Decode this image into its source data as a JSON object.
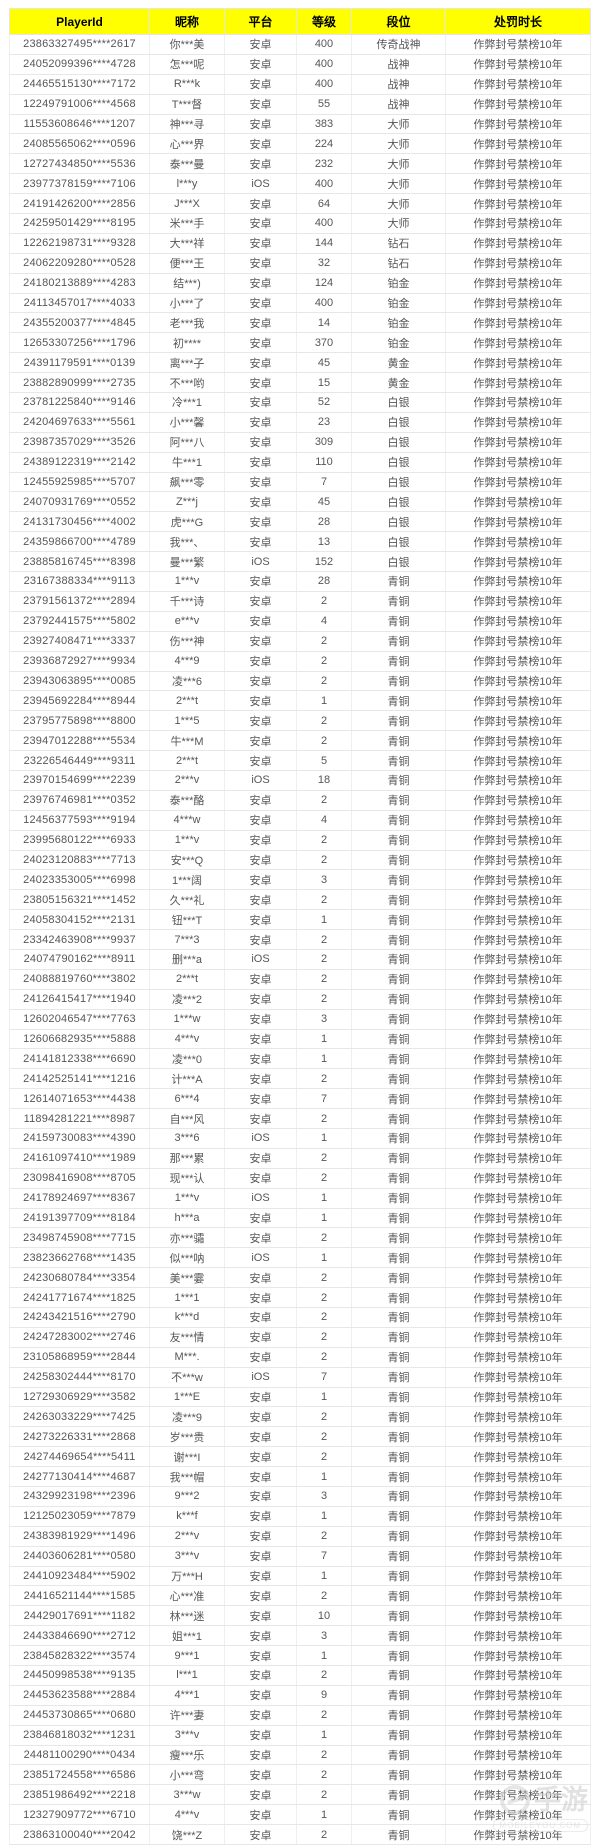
{
  "table": {
    "columns": [
      {
        "key": "playerId",
        "label": "PlayerId"
      },
      {
        "key": "nickname",
        "label": "昵称"
      },
      {
        "key": "platform",
        "label": "平台"
      },
      {
        "key": "level",
        "label": "等级"
      },
      {
        "key": "rank",
        "label": "段位"
      },
      {
        "key": "punishment",
        "label": "处罚时长"
      }
    ],
    "rows": [
      [
        "23863327495****2617",
        "你***美",
        "安卓",
        "400",
        "传奇战神",
        "作弊封号禁榜10年"
      ],
      [
        "24052099396****4728",
        "怎***呢",
        "安卓",
        "400",
        "战神",
        "作弊封号禁榜10年"
      ],
      [
        "24465515130****7172",
        "R***k",
        "安卓",
        "400",
        "战神",
        "作弊封号禁榜10年"
      ],
      [
        "12249791006****4568",
        "T***督",
        "安卓",
        "55",
        "战神",
        "作弊封号禁榜10年"
      ],
      [
        "11553608646****1207",
        "神***寻",
        "安卓",
        "383",
        "大师",
        "作弊封号禁榜10年"
      ],
      [
        "24085565062****0596",
        "心***界",
        "安卓",
        "224",
        "大师",
        "作弊封号禁榜10年"
      ],
      [
        "12727434850****5536",
        "泰***曼",
        "安卓",
        "232",
        "大师",
        "作弊封号禁榜10年"
      ],
      [
        "23977378159****7106",
        "l***y",
        "iOS",
        "400",
        "大师",
        "作弊封号禁榜10年"
      ],
      [
        "24191426200****2856",
        "J***X",
        "安卓",
        "64",
        "大师",
        "作弊封号禁榜10年"
      ],
      [
        "24259501429****8195",
        "米***手",
        "安卓",
        "400",
        "大师",
        "作弊封号禁榜10年"
      ],
      [
        "12262198731****9328",
        "大***祥",
        "安卓",
        "144",
        "钻石",
        "作弊封号禁榜10年"
      ],
      [
        "24062209280****0528",
        "便***王",
        "安卓",
        "32",
        "钻石",
        "作弊封号禁榜10年"
      ],
      [
        "24180213889****4283",
        "结***)",
        "安卓",
        "124",
        "铂金",
        "作弊封号禁榜10年"
      ],
      [
        "24113457017****4033",
        "小***了",
        "安卓",
        "400",
        "铂金",
        "作弊封号禁榜10年"
      ],
      [
        "24355200377****4845",
        "老***我",
        "安卓",
        "14",
        "铂金",
        "作弊封号禁榜10年"
      ],
      [
        "12653307256****1796",
        "初****",
        "安卓",
        "370",
        "铂金",
        "作弊封号禁榜10年"
      ],
      [
        "24391179591****0139",
        "离***子",
        "安卓",
        "45",
        "黄金",
        "作弊封号禁榜10年"
      ],
      [
        "23882890999****2735",
        "不***哟",
        "安卓",
        "15",
        "黄金",
        "作弊封号禁榜10年"
      ],
      [
        "23781225840****9146",
        "冷***1",
        "安卓",
        "52",
        "白银",
        "作弊封号禁榜10年"
      ],
      [
        "24204697633****5561",
        "小***馨",
        "安卓",
        "23",
        "白银",
        "作弊封号禁榜10年"
      ],
      [
        "23987357029****3526",
        "阿***八",
        "安卓",
        "309",
        "白银",
        "作弊封号禁榜10年"
      ],
      [
        "24389122319****2142",
        "牛***1",
        "安卓",
        "110",
        "白银",
        "作弊封号禁榜10年"
      ],
      [
        "12455925985****5707",
        "飙***零",
        "安卓",
        "7",
        "白银",
        "作弊封号禁榜10年"
      ],
      [
        "24070931769****0552",
        "Z***j",
        "安卓",
        "45",
        "白银",
        "作弊封号禁榜10年"
      ],
      [
        "24131730456****4002",
        "虎***G",
        "安卓",
        "28",
        "白银",
        "作弊封号禁榜10年"
      ],
      [
        "24359866700****4789",
        "我***、",
        "安卓",
        "13",
        "白银",
        "作弊封号禁榜10年"
      ],
      [
        "23885816745****8398",
        "曼***繁",
        "iOS",
        "152",
        "白银",
        "作弊封号禁榜10年"
      ],
      [
        "23167388334****9113",
        "1***v",
        "安卓",
        "28",
        "青铜",
        "作弊封号禁榜10年"
      ],
      [
        "23791561372****2894",
        "千***诗",
        "安卓",
        "2",
        "青铜",
        "作弊封号禁榜10年"
      ],
      [
        "23792441575****5802",
        "e***v",
        "安卓",
        "4",
        "青铜",
        "作弊封号禁榜10年"
      ],
      [
        "23927408471****3337",
        "伤***神",
        "安卓",
        "2",
        "青铜",
        "作弊封号禁榜10年"
      ],
      [
        "23936872927****9934",
        "4***9",
        "安卓",
        "2",
        "青铜",
        "作弊封号禁榜10年"
      ],
      [
        "23943063895****0085",
        "凌***6",
        "安卓",
        "2",
        "青铜",
        "作弊封号禁榜10年"
      ],
      [
        "23945692284****8944",
        "2***t",
        "安卓",
        "1",
        "青铜",
        "作弊封号禁榜10年"
      ],
      [
        "23795775898****8800",
        "1***5",
        "安卓",
        "2",
        "青铜",
        "作弊封号禁榜10年"
      ],
      [
        "23947012288****5534",
        "牛***M",
        "安卓",
        "2",
        "青铜",
        "作弊封号禁榜10年"
      ],
      [
        "23226546449****9311",
        "2***t",
        "安卓",
        "5",
        "青铜",
        "作弊封号禁榜10年"
      ],
      [
        "23970154699****2239",
        "2***v",
        "iOS",
        "18",
        "青铜",
        "作弊封号禁榜10年"
      ],
      [
        "23976746981****0352",
        "泰***酪",
        "安卓",
        "2",
        "青铜",
        "作弊封号禁榜10年"
      ],
      [
        "12456377593****9194",
        "4***w",
        "安卓",
        "4",
        "青铜",
        "作弊封号禁榜10年"
      ],
      [
        "23995680122****6933",
        "1***v",
        "安卓",
        "2",
        "青铜",
        "作弊封号禁榜10年"
      ],
      [
        "24023120883****7713",
        "安***Q",
        "安卓",
        "2",
        "青铜",
        "作弊封号禁榜10年"
      ],
      [
        "24023353005****6998",
        "1***阔",
        "安卓",
        "3",
        "青铜",
        "作弊封号禁榜10年"
      ],
      [
        "23805156321****1452",
        "久***礼",
        "安卓",
        "2",
        "青铜",
        "作弊封号禁榜10年"
      ],
      [
        "24058304152****2131",
        "钮***T",
        "安卓",
        "1",
        "青铜",
        "作弊封号禁榜10年"
      ],
      [
        "23342463908****9937",
        "7***3",
        "安卓",
        "2",
        "青铜",
        "作弊封号禁榜10年"
      ],
      [
        "24074790162****8911",
        "删***a",
        "iOS",
        "2",
        "青铜",
        "作弊封号禁榜10年"
      ],
      [
        "24088819760****3802",
        "2***t",
        "安卓",
        "2",
        "青铜",
        "作弊封号禁榜10年"
      ],
      [
        "24126415417****1940",
        "凌***2",
        "安卓",
        "2",
        "青铜",
        "作弊封号禁榜10年"
      ],
      [
        "12602046547****7763",
        "1***w",
        "安卓",
        "3",
        "青铜",
        "作弊封号禁榜10年"
      ],
      [
        "12606682935****5888",
        "4***v",
        "安卓",
        "1",
        "青铜",
        "作弊封号禁榜10年"
      ],
      [
        "24141812338****6690",
        "凌***0",
        "安卓",
        "1",
        "青铜",
        "作弊封号禁榜10年"
      ],
      [
        "24142525141****1216",
        "计***A",
        "安卓",
        "2",
        "青铜",
        "作弊封号禁榜10年"
      ],
      [
        "12614071653****4438",
        "6***4",
        "安卓",
        "7",
        "青铜",
        "作弊封号禁榜10年"
      ],
      [
        "11894281221****8987",
        "自***风",
        "安卓",
        "2",
        "青铜",
        "作弊封号禁榜10年"
      ],
      [
        "24159730083****4390",
        "3***6",
        "iOS",
        "1",
        "青铜",
        "作弊封号禁榜10年"
      ],
      [
        "24161097410****1989",
        "那***累",
        "安卓",
        "2",
        "青铜",
        "作弊封号禁榜10年"
      ],
      [
        "23098416908****8705",
        "现***认",
        "安卓",
        "2",
        "青铜",
        "作弊封号禁榜10年"
      ],
      [
        "24178924697****8367",
        "1***v",
        "iOS",
        "1",
        "青铜",
        "作弊封号禁榜10年"
      ],
      [
        "24191397709****8184",
        "h***a",
        "安卓",
        "1",
        "青铜",
        "作弊封号禁榜10年"
      ],
      [
        "23498745908****7715",
        "亦***骦",
        "安卓",
        "2",
        "青铜",
        "作弊封号禁榜10年"
      ],
      [
        "23823662768****1435",
        "似***呐",
        "iOS",
        "1",
        "青铜",
        "作弊封号禁榜10年"
      ],
      [
        "24230680784****3354",
        "美***霎",
        "安卓",
        "2",
        "青铜",
        "作弊封号禁榜10年"
      ],
      [
        "24241771674****1825",
        "1***1",
        "安卓",
        "2",
        "青铜",
        "作弊封号禁榜10年"
      ],
      [
        "24243421516****2790",
        "k***d",
        "安卓",
        "2",
        "青铜",
        "作弊封号禁榜10年"
      ],
      [
        "24247283002****2746",
        "友***情",
        "安卓",
        "2",
        "青铜",
        "作弊封号禁榜10年"
      ],
      [
        "23105868959****2844",
        "M***.",
        "安卓",
        "2",
        "青铜",
        "作弊封号禁榜10年"
      ],
      [
        "24258302444****8170",
        "不***w",
        "iOS",
        "7",
        "青铜",
        "作弊封号禁榜10年"
      ],
      [
        "12729306929****3582",
        "1***E",
        "安卓",
        "1",
        "青铜",
        "作弊封号禁榜10年"
      ],
      [
        "24263033229****7425",
        "凌***9",
        "安卓",
        "2",
        "青铜",
        "作弊封号禁榜10年"
      ],
      [
        "24273226331****2868",
        "岁***贵",
        "安卓",
        "2",
        "青铜",
        "作弊封号禁榜10年"
      ],
      [
        "24274469654****5411",
        "谢***I",
        "安卓",
        "2",
        "青铜",
        "作弊封号禁榜10年"
      ],
      [
        "24277130414****4687",
        "我***帽",
        "安卓",
        "1",
        "青铜",
        "作弊封号禁榜10年"
      ],
      [
        "24329923198****2396",
        "9***2",
        "安卓",
        "3",
        "青铜",
        "作弊封号禁榜10年"
      ],
      [
        "12125023059****7879",
        "k***f",
        "安卓",
        "1",
        "青铜",
        "作弊封号禁榜10年"
      ],
      [
        "24383981929****1496",
        "2***v",
        "安卓",
        "2",
        "青铜",
        "作弊封号禁榜10年"
      ],
      [
        "24403606281****0580",
        "3***v",
        "安卓",
        "7",
        "青铜",
        "作弊封号禁榜10年"
      ],
      [
        "24410923484****5902",
        "万***H",
        "安卓",
        "1",
        "青铜",
        "作弊封号禁榜10年"
      ],
      [
        "24416521144****1585",
        "心***准",
        "安卓",
        "2",
        "青铜",
        "作弊封号禁榜10年"
      ],
      [
        "24429017691****1182",
        "林***迷",
        "安卓",
        "10",
        "青铜",
        "作弊封号禁榜10年"
      ],
      [
        "24433846690****2712",
        "姐***1",
        "安卓",
        "3",
        "青铜",
        "作弊封号禁榜10年"
      ],
      [
        "23845828322****3574",
        "9***1",
        "安卓",
        "1",
        "青铜",
        "作弊封号禁榜10年"
      ],
      [
        "24450998538****9135",
        "l***1",
        "安卓",
        "2",
        "青铜",
        "作弊封号禁榜10年"
      ],
      [
        "24453623588****2884",
        "4***1",
        "安卓",
        "9",
        "青铜",
        "作弊封号禁榜10年"
      ],
      [
        "24453730865****0680",
        "许***妻",
        "安卓",
        "2",
        "青铜",
        "作弊封号禁榜10年"
      ],
      [
        "23846818032****1231",
        "3***v",
        "安卓",
        "1",
        "青铜",
        "作弊封号禁榜10年"
      ],
      [
        "24481100290****0434",
        "瘦***乐",
        "安卓",
        "2",
        "青铜",
        "作弊封号禁榜10年"
      ],
      [
        "23851724558****6586",
        "小***弯",
        "安卓",
        "2",
        "青铜",
        "作弊封号禁榜10年"
      ],
      [
        "23851986492****2218",
        "3***w",
        "安卓",
        "2",
        "青铜",
        "作弊封号禁榜10年"
      ],
      [
        "12327909772****6710",
        "4***v",
        "安卓",
        "1",
        "青铜",
        "作弊封号禁榜10年"
      ],
      [
        "23863100040****2042",
        "饶***Z",
        "安卓",
        "2",
        "青铜",
        "作弊封号禁榜10年"
      ]
    ]
  },
  "colors": {
    "header_bg": "#ffff00",
    "header_text": "#000000",
    "body_text": "#565656",
    "border": "#e7e7e7"
  },
  "watermark": {
    "logo_text": "手游",
    "domain_text": "mobileyou.com"
  }
}
